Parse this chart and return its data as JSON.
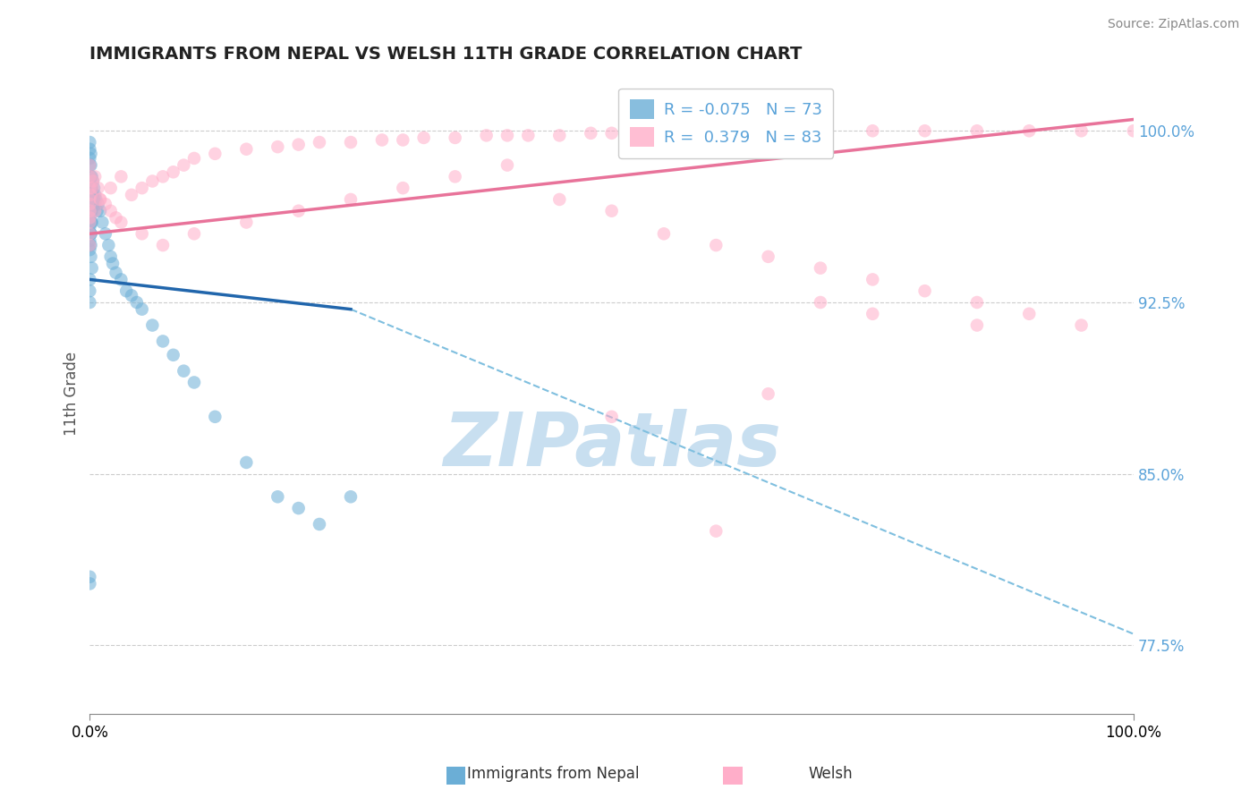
{
  "title": "IMMIGRANTS FROM NEPAL VS WELSH 11TH GRADE CORRELATION CHART",
  "source": "Source: ZipAtlas.com",
  "ylabel": "11th Grade",
  "xmin": 0.0,
  "xmax": 100.0,
  "ymin": 74.5,
  "ymax": 102.5,
  "yticks_right": [
    77.5,
    85.0,
    92.5,
    100.0
  ],
  "ytick_labels_right": [
    "77.5%",
    "85.0%",
    "92.5%",
    "100.0%"
  ],
  "legend_r_nepal": "-0.075",
  "legend_n_nepal": "73",
  "legend_r_welsh": "0.379",
  "legend_n_welsh": "83",
  "color_nepal": "#6baed6",
  "color_welsh": "#ffaec9",
  "color_nepal_line_solid": "#2166ac",
  "color_nepal_line_dashed": "#7fbfdf",
  "color_welsh_line": "#e8739a",
  "watermark": "ZIPatlas",
  "watermark_color": "#c8dff0",
  "nepal_x": [
    0.0,
    0.0,
    0.0,
    0.0,
    0.0,
    0.0,
    0.0,
    0.0,
    0.0,
    0.0,
    0.0,
    0.0,
    0.0,
    0.0,
    0.0,
    0.0,
    0.0,
    0.0,
    0.1,
    0.1,
    0.1,
    0.1,
    0.1,
    0.1,
    0.1,
    0.1,
    0.1,
    0.1,
    0.2,
    0.2,
    0.2,
    0.2,
    0.2,
    0.3,
    0.3,
    0.3,
    0.4,
    0.4,
    0.5,
    0.5,
    0.6,
    0.7,
    0.8,
    1.0,
    1.2,
    1.5,
    1.8,
    2.0,
    2.2,
    2.5,
    3.0,
    3.5,
    4.0,
    4.5,
    5.0,
    6.0,
    7.0,
    8.0,
    9.0,
    10.0,
    12.0,
    15.0,
    18.0,
    20.0,
    22.0,
    25.0,
    0.0,
    0.0,
    0.0,
    0.0,
    0.0,
    0.1,
    0.2
  ],
  "nepal_y": [
    99.5,
    99.2,
    98.8,
    98.5,
    98.0,
    97.8,
    97.5,
    97.2,
    97.0,
    96.8,
    96.5,
    96.2,
    96.0,
    95.8,
    95.5,
    95.2,
    95.0,
    94.8,
    99.0,
    98.5,
    98.0,
    97.5,
    97.0,
    96.5,
    96.0,
    95.5,
    95.0,
    94.5,
    98.0,
    97.5,
    97.0,
    96.5,
    96.0,
    97.8,
    97.2,
    96.8,
    97.5,
    97.0,
    97.2,
    96.8,
    97.0,
    96.5,
    96.8,
    96.5,
    96.0,
    95.5,
    95.0,
    94.5,
    94.2,
    93.8,
    93.5,
    93.0,
    92.8,
    92.5,
    92.2,
    91.5,
    90.8,
    90.2,
    89.5,
    89.0,
    87.5,
    85.5,
    84.0,
    83.5,
    82.8,
    84.0,
    93.5,
    93.0,
    92.5,
    80.5,
    80.2,
    95.5,
    94.0
  ],
  "welsh_x": [
    0.0,
    0.0,
    0.0,
    0.0,
    0.0,
    0.0,
    0.0,
    0.0,
    0.1,
    0.2,
    0.3,
    0.5,
    0.8,
    1.0,
    1.5,
    2.0,
    2.5,
    3.0,
    4.0,
    5.0,
    6.0,
    7.0,
    8.0,
    9.0,
    10.0,
    12.0,
    15.0,
    18.0,
    20.0,
    22.0,
    25.0,
    28.0,
    30.0,
    32.0,
    35.0,
    38.0,
    40.0,
    42.0,
    45.0,
    48.0,
    50.0,
    55.0,
    60.0,
    65.0,
    70.0,
    75.0,
    80.0,
    85.0,
    90.0,
    95.0,
    100.0,
    0.0,
    0.0,
    0.5,
    1.0,
    2.0,
    3.0,
    5.0,
    7.0,
    10.0,
    15.0,
    20.0,
    25.0,
    30.0,
    35.0,
    40.0,
    45.0,
    50.0,
    55.0,
    60.0,
    65.0,
    70.0,
    75.0,
    80.0,
    85.0,
    90.0,
    95.0,
    50.0,
    60.0,
    65.0,
    70.0,
    75.0,
    85.0
  ],
  "welsh_y": [
    98.5,
    98.0,
    97.5,
    97.0,
    96.8,
    96.5,
    96.2,
    96.0,
    97.2,
    97.5,
    97.8,
    98.0,
    97.5,
    97.0,
    96.8,
    96.5,
    96.2,
    96.0,
    97.2,
    97.5,
    97.8,
    98.0,
    98.2,
    98.5,
    98.8,
    99.0,
    99.2,
    99.3,
    99.4,
    99.5,
    99.5,
    99.6,
    99.6,
    99.7,
    99.7,
    99.8,
    99.8,
    99.8,
    99.8,
    99.9,
    99.9,
    99.9,
    99.9,
    100.0,
    100.0,
    100.0,
    100.0,
    100.0,
    100.0,
    100.0,
    100.0,
    95.5,
    95.0,
    96.5,
    97.0,
    97.5,
    98.0,
    95.5,
    95.0,
    95.5,
    96.0,
    96.5,
    97.0,
    97.5,
    98.0,
    98.5,
    97.0,
    96.5,
    95.5,
    95.0,
    94.5,
    94.0,
    93.5,
    93.0,
    92.5,
    92.0,
    91.5,
    87.5,
    82.5,
    88.5,
    92.5,
    92.0,
    91.5
  ],
  "nepal_line_x0": 0.0,
  "nepal_line_x1": 25.0,
  "nepal_line_y0": 93.5,
  "nepal_line_y1": 92.2,
  "nepal_dashed_x0": 25.0,
  "nepal_dashed_x1": 100.0,
  "nepal_dashed_y0": 92.2,
  "nepal_dashed_y1": 78.0,
  "welsh_line_x0": 0.0,
  "welsh_line_x1": 100.0,
  "welsh_line_y0": 95.5,
  "welsh_line_y1": 100.5
}
